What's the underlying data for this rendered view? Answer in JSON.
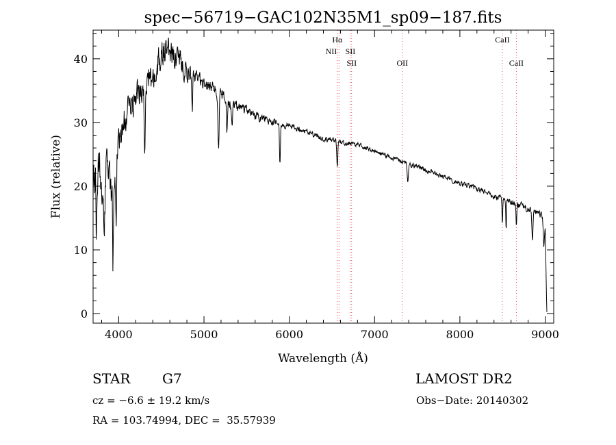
{
  "chart_data": {
    "type": "line",
    "title": "spec−56719−GAC102N35M1_sp09−187.fits",
    "xlabel": "Wavelength (Å)",
    "ylabel": "Flux (relative)",
    "xlim": [
      3700,
      9100
    ],
    "ylim": [
      -1.5,
      44.5
    ],
    "xticks": [
      4000,
      5000,
      6000,
      7000,
      8000,
      9000
    ],
    "yticks": [
      0,
      10,
      20,
      30,
      40
    ],
    "grid": false,
    "continuum": {
      "x": [
        3700,
        3750,
        3800,
        3850,
        3900,
        3950,
        4000,
        4100,
        4200,
        4300,
        4400,
        4500,
        4600,
        4700,
        4800,
        4900,
        5000,
        5100,
        5200,
        5300,
        5400,
        5500,
        5600,
        5800,
        6000,
        6200,
        6400,
        6600,
        6800,
        7000,
        7200,
        7400,
        7600,
        7800,
        8000,
        8200,
        8400,
        8600,
        8800,
        8950,
        9000,
        9020
      ],
      "y": [
        20,
        24,
        19,
        22,
        18,
        22,
        28,
        31,
        34,
        35,
        37,
        41,
        41,
        40,
        38,
        37,
        36,
        35.5,
        34.5,
        33,
        32.5,
        32,
        31,
        30,
        29.5,
        28.5,
        27.5,
        27,
        26.5,
        25.5,
        24.5,
        23.5,
        22.5,
        21.5,
        20.5,
        19.5,
        18.5,
        17.5,
        16.5,
        15.5,
        14,
        0
      ]
    },
    "noise_amplitude": {
      "x": [
        3700,
        3950,
        4000,
        4500,
        4800,
        5000,
        5500,
        6000,
        7000,
        8000,
        9000
      ],
      "y": [
        6,
        6,
        3.5,
        3.5,
        2.5,
        1.6,
        1.1,
        0.7,
        0.5,
        0.6,
        0.9
      ]
    },
    "absorption_features": [
      {
        "x": 3740,
        "depth": 10,
        "width": 8
      },
      {
        "x": 3830,
        "depth": 8,
        "width": 10
      },
      {
        "x": 3934,
        "depth": 12,
        "width": 8
      },
      {
        "x": 3969,
        "depth": 11,
        "width": 8
      },
      {
        "x": 4305,
        "depth": 10,
        "width": 8
      },
      {
        "x": 4862,
        "depth": 6,
        "width": 8
      },
      {
        "x": 5170,
        "depth": 9,
        "width": 10
      },
      {
        "x": 5270,
        "depth": 5,
        "width": 8
      },
      {
        "x": 5330,
        "depth": 4,
        "width": 8
      },
      {
        "x": 5890,
        "depth": 6,
        "width": 8
      },
      {
        "x": 6563,
        "depth": 4,
        "width": 8
      },
      {
        "x": 7390,
        "depth": 3,
        "width": 10
      },
      {
        "x": 8498,
        "depth": 4,
        "width": 6
      },
      {
        "x": 8542,
        "depth": 5,
        "width": 6
      },
      {
        "x": 8662,
        "depth": 4,
        "width": 6
      },
      {
        "x": 8850,
        "depth": 5,
        "width": 8
      },
      {
        "x": 8985,
        "depth": 4,
        "width": 10
      }
    ],
    "spectral_lines": [
      {
        "label": "Hα",
        "x": 6563,
        "row": 0,
        "anchor": "middle",
        "dx": 0
      },
      {
        "label": "NII",
        "x": 6583,
        "row": 1,
        "anchor": "end",
        "dx": -3
      },
      {
        "label": "SII",
        "x": 6716,
        "row": 1,
        "anchor": "middle",
        "dx": 0
      },
      {
        "label": "SII",
        "x": 6731,
        "row": 2,
        "anchor": "middle",
        "dx": 0
      },
      {
        "label": "OII",
        "x": 7325,
        "row": 2,
        "anchor": "middle",
        "dx": 0
      },
      {
        "label": "CaII",
        "x": 8498,
        "row": 0,
        "anchor": "middle",
        "dx": 0
      },
      {
        "label": "CaII",
        "x": 8662,
        "row": 2,
        "anchor": "middle",
        "dx": 0
      }
    ],
    "marker_lines_x": [
      6563,
      6583,
      6716,
      6731,
      7325,
      8498,
      8662
    ]
  },
  "info": {
    "object_class": "STAR",
    "subclass": "G7",
    "survey": "LAMOST DR2",
    "cz": "cz = −6.6 ± 19.2 km/s",
    "obs_date": "Obs−Date: 20140302",
    "coords": "RA = 103.74994, DEC =  35.57939"
  }
}
